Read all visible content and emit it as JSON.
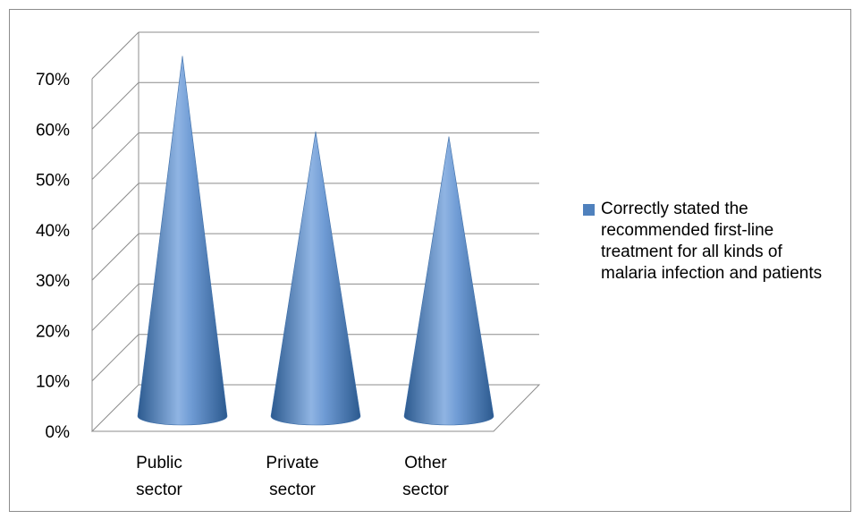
{
  "chart_data": {
    "type": "bar",
    "shape": "cone",
    "categories": [
      [
        "Public",
        "sector"
      ],
      [
        "Private",
        "sector"
      ],
      [
        "Other",
        "sector"
      ]
    ],
    "series": [
      {
        "name": "Correctly stated the recommended first-line treatment for all kinds of malaria infection and patients",
        "values": [
          0.66,
          0.51,
          0.5
        ]
      }
    ],
    "ylim": [
      0,
      0.7
    ],
    "yticks": [
      "0%",
      "10%",
      "20%",
      "30%",
      "40%",
      "50%",
      "60%",
      "70%"
    ],
    "grid": true,
    "legend_position": "right",
    "colors": {
      "series": "#4f81bd",
      "series_dark": "#2c5a8f",
      "series_light": "#8fb4e3",
      "grid": "#8c8c8c"
    }
  }
}
